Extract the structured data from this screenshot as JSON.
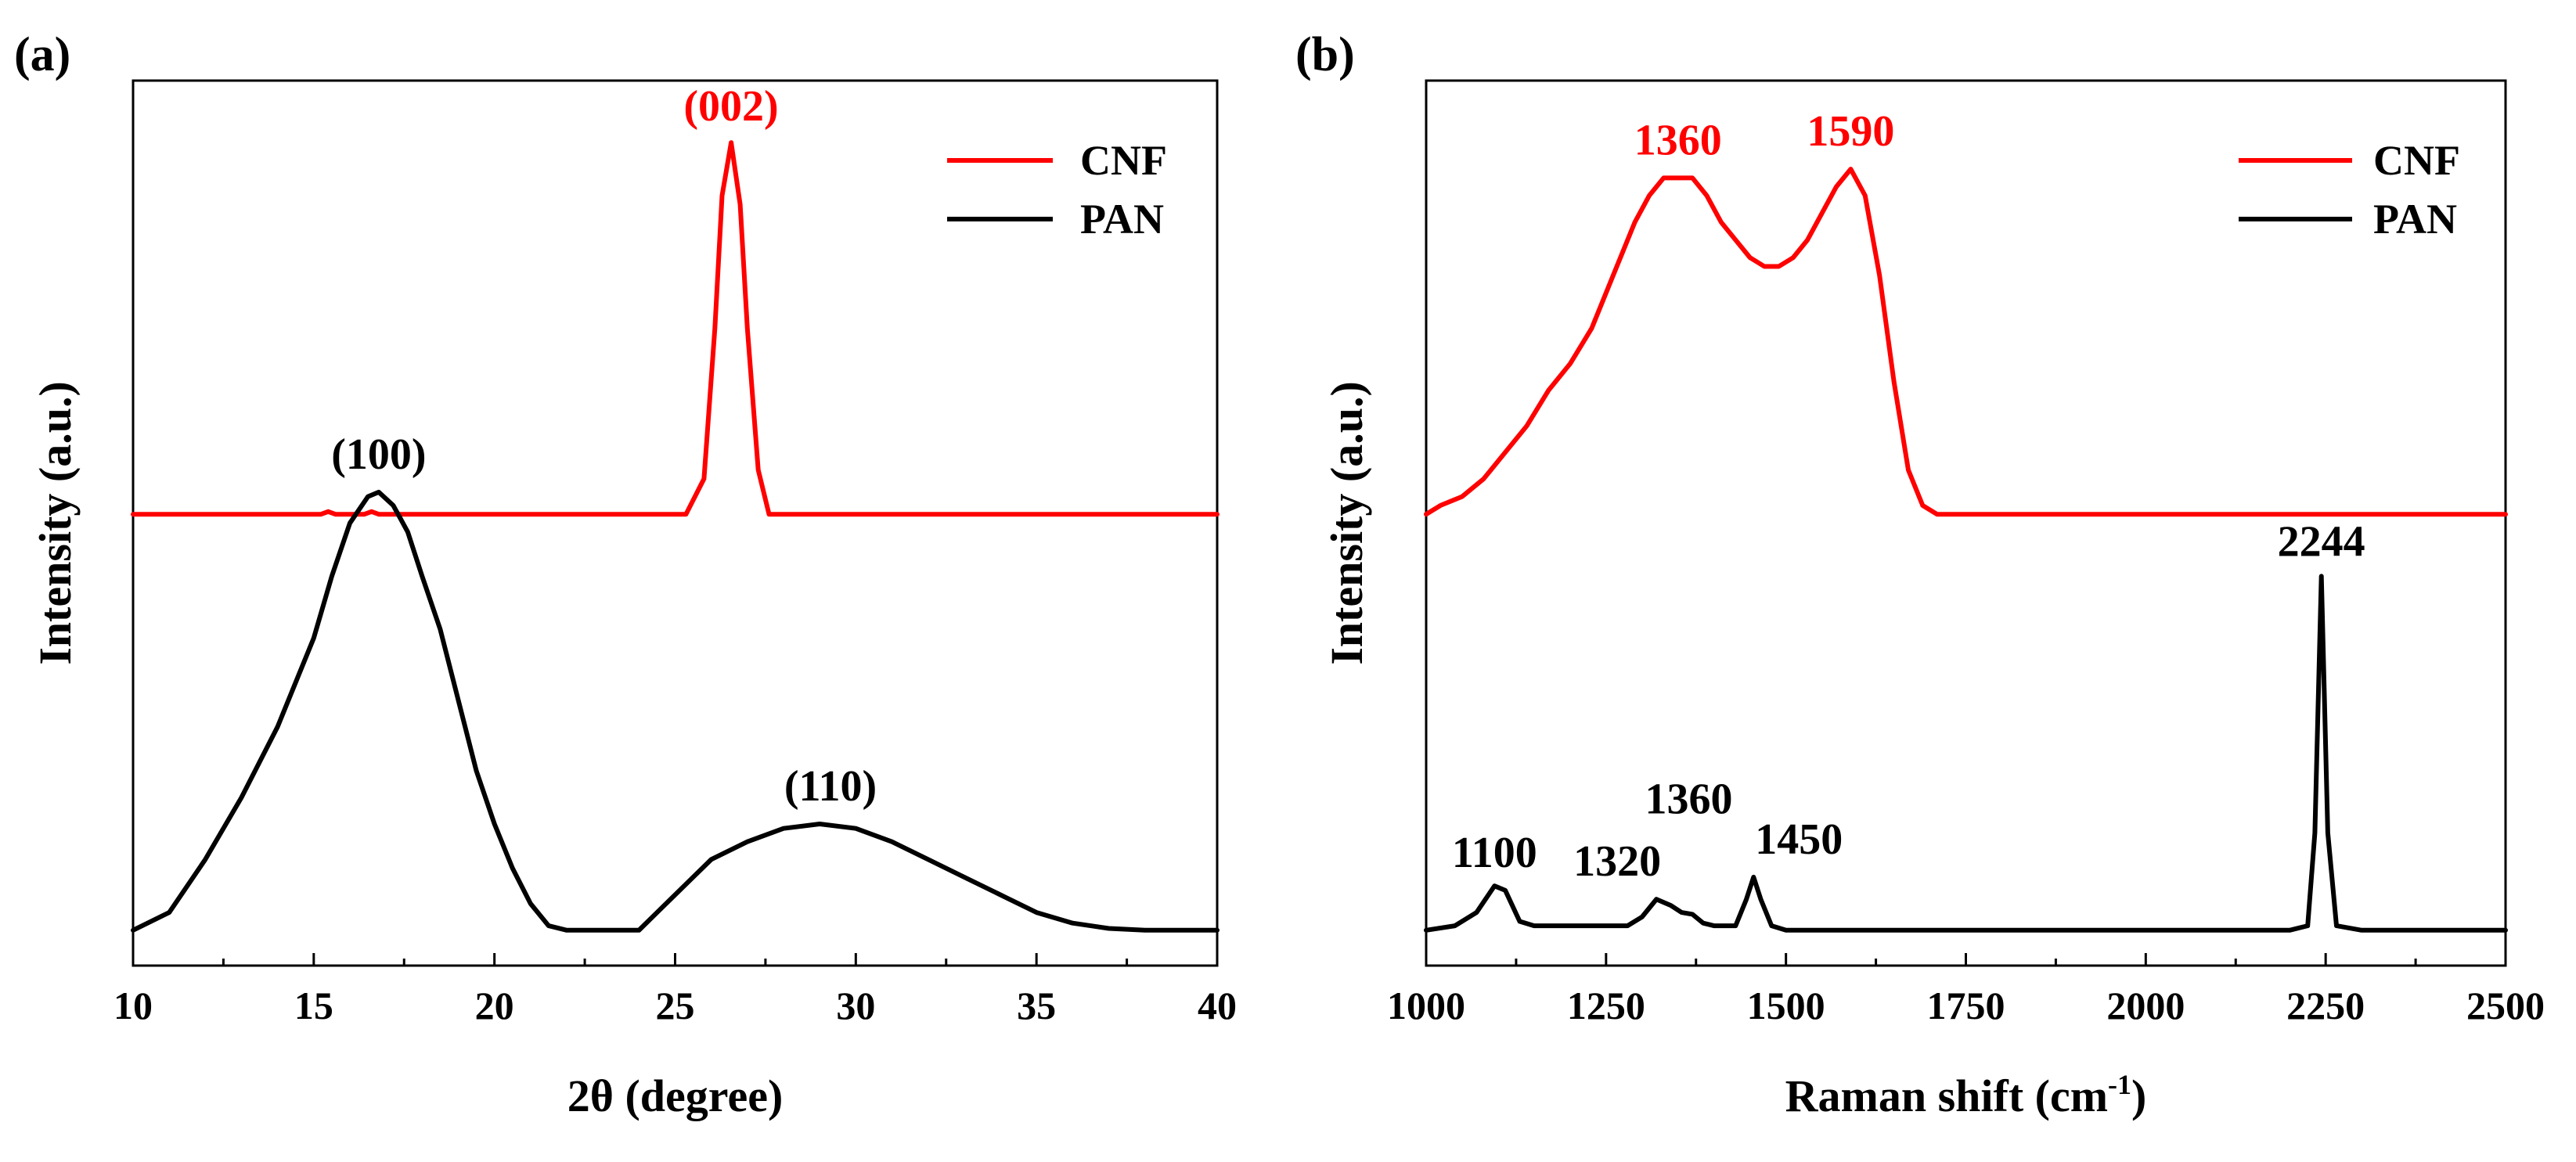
{
  "chart_data": [
    {
      "type": "line",
      "panel_label": "(a)",
      "xlabel": "2θ  (degree)",
      "ylabel": "Intensity (a.u.)",
      "xlim": [
        10,
        40
      ],
      "ylim": [
        0,
        1
      ],
      "x_ticks": [
        "10",
        "15",
        "20",
        "25",
        "30",
        "35",
        "40"
      ],
      "grid": false,
      "legend_position": "top-right",
      "colors": {
        "CNF": "#ff0000",
        "PAN": "#000000"
      },
      "series": [
        {
          "name": "CNF",
          "color": "#ff0000",
          "points": [
            [
              10,
              0.51
            ],
            [
              15.2,
              0.51
            ],
            [
              15.4,
              0.513
            ],
            [
              15.6,
              0.51
            ],
            [
              16.4,
              0.51
            ],
            [
              16.6,
              0.513
            ],
            [
              16.8,
              0.51
            ],
            [
              25.3,
              0.51
            ],
            [
              25.8,
              0.55
            ],
            [
              26.1,
              0.72
            ],
            [
              26.3,
              0.87
            ],
            [
              26.55,
              0.93
            ],
            [
              26.8,
              0.86
            ],
            [
              27.0,
              0.72
            ],
            [
              27.3,
              0.56
            ],
            [
              27.6,
              0.51
            ],
            [
              40,
              0.51
            ]
          ]
        },
        {
          "name": "PAN",
          "color": "#000000",
          "points": [
            [
              10,
              0.04
            ],
            [
              11,
              0.06
            ],
            [
              12,
              0.12
            ],
            [
              13,
              0.19
            ],
            [
              14,
              0.27
            ],
            [
              15,
              0.37
            ],
            [
              15.5,
              0.44
            ],
            [
              16,
              0.5
            ],
            [
              16.5,
              0.53
            ],
            [
              16.8,
              0.535
            ],
            [
              17.2,
              0.52
            ],
            [
              17.6,
              0.49
            ],
            [
              18,
              0.44
            ],
            [
              18.5,
              0.38
            ],
            [
              19,
              0.3
            ],
            [
              19.5,
              0.22
            ],
            [
              20,
              0.16
            ],
            [
              20.5,
              0.11
            ],
            [
              21,
              0.07
            ],
            [
              21.5,
              0.045
            ],
            [
              22,
              0.04
            ],
            [
              24,
              0.04
            ],
            [
              24.5,
              0.06
            ],
            [
              25,
              0.08
            ],
            [
              26,
              0.12
            ],
            [
              27,
              0.14
            ],
            [
              28,
              0.155
            ],
            [
              29,
              0.16
            ],
            [
              30,
              0.155
            ],
            [
              31,
              0.14
            ],
            [
              32,
              0.12
            ],
            [
              33,
              0.1
            ],
            [
              34,
              0.08
            ],
            [
              35,
              0.06
            ],
            [
              36,
              0.048
            ],
            [
              37,
              0.042
            ],
            [
              38,
              0.04
            ],
            [
              40,
              0.04
            ]
          ]
        }
      ],
      "annotations": [
        {
          "text": "(002)",
          "x": 26.55,
          "y": 0.93,
          "color": "#ff0000"
        },
        {
          "text": "(100)",
          "x": 16.8,
          "y": 0.535,
          "color": "#000000"
        },
        {
          "text": "(110)",
          "x": 29.3,
          "y": 0.16,
          "color": "#000000"
        }
      ]
    },
    {
      "type": "line",
      "panel_label": "(b)",
      "xlabel": "Raman shift (cm",
      "xlabel_superscript": "-1",
      "xlabel_suffix": ")",
      "ylabel": "Intensity (a.u.)",
      "xlim": [
        1000,
        2500
      ],
      "ylim": [
        0,
        1
      ],
      "x_ticks": [
        "1000",
        "1250",
        "1500",
        "1750",
        "2000",
        "2250",
        "2500"
      ],
      "grid": false,
      "legend_position": "top-right",
      "colors": {
        "CNF": "#ff0000",
        "PAN": "#000000"
      },
      "series": [
        {
          "name": "CNF",
          "color": "#ff0000",
          "points": [
            [
              1000,
              0.51
            ],
            [
              1020,
              0.52
            ],
            [
              1050,
              0.53
            ],
            [
              1080,
              0.55
            ],
            [
              1110,
              0.58
            ],
            [
              1140,
              0.61
            ],
            [
              1170,
              0.65
            ],
            [
              1200,
              0.68
            ],
            [
              1230,
              0.72
            ],
            [
              1260,
              0.78
            ],
            [
              1290,
              0.84
            ],
            [
              1310,
              0.87
            ],
            [
              1330,
              0.89
            ],
            [
              1350,
              0.89
            ],
            [
              1370,
              0.89
            ],
            [
              1390,
              0.87
            ],
            [
              1410,
              0.84
            ],
            [
              1430,
              0.82
            ],
            [
              1450,
              0.8
            ],
            [
              1470,
              0.79
            ],
            [
              1490,
              0.79
            ],
            [
              1510,
              0.8
            ],
            [
              1530,
              0.82
            ],
            [
              1550,
              0.85
            ],
            [
              1570,
              0.88
            ],
            [
              1590,
              0.9
            ],
            [
              1610,
              0.87
            ],
            [
              1630,
              0.78
            ],
            [
              1650,
              0.66
            ],
            [
              1670,
              0.56
            ],
            [
              1690,
              0.52
            ],
            [
              1710,
              0.51
            ],
            [
              2500,
              0.51
            ]
          ]
        },
        {
          "name": "PAN",
          "color": "#000000",
          "points": [
            [
              1000,
              0.04
            ],
            [
              1040,
              0.045
            ],
            [
              1070,
              0.06
            ],
            [
              1095,
              0.09
            ],
            [
              1110,
              0.085
            ],
            [
              1130,
              0.05
            ],
            [
              1150,
              0.045
            ],
            [
              1200,
              0.045
            ],
            [
              1280,
              0.045
            ],
            [
              1300,
              0.055
            ],
            [
              1320,
              0.075
            ],
            [
              1340,
              0.068
            ],
            [
              1355,
              0.06
            ],
            [
              1370,
              0.058
            ],
            [
              1385,
              0.048
            ],
            [
              1400,
              0.045
            ],
            [
              1430,
              0.045
            ],
            [
              1445,
              0.075
            ],
            [
              1455,
              0.1
            ],
            [
              1465,
              0.075
            ],
            [
              1480,
              0.045
            ],
            [
              1500,
              0.04
            ],
            [
              1600,
              0.04
            ],
            [
              1700,
              0.04
            ],
            [
              1800,
              0.04
            ],
            [
              1900,
              0.04
            ],
            [
              2000,
              0.04
            ],
            [
              2100,
              0.04
            ],
            [
              2200,
              0.04
            ],
            [
              2225,
              0.045
            ],
            [
              2235,
              0.15
            ],
            [
              2244,
              0.44
            ],
            [
              2253,
              0.15
            ],
            [
              2265,
              0.045
            ],
            [
              2300,
              0.04
            ],
            [
              2500,
              0.04
            ]
          ]
        }
      ],
      "annotations": [
        {
          "text": "1360",
          "x": 1350,
          "y": 0.89,
          "color": "#ff0000"
        },
        {
          "text": "1590",
          "x": 1590,
          "y": 0.9,
          "color": "#ff0000"
        },
        {
          "text": "1100",
          "x": 1095,
          "y": 0.09,
          "color": "#000000"
        },
        {
          "text": "1320",
          "x": 1320,
          "y": 0.075,
          "color": "#000000"
        },
        {
          "text": "1360",
          "x": 1365,
          "y": 0.14,
          "color": "#000000"
        },
        {
          "text": "1450",
          "x": 1480,
          "y": 0.1,
          "color": "#000000"
        },
        {
          "text": "2244",
          "x": 2244,
          "y": 0.44,
          "color": "#000000"
        }
      ]
    }
  ]
}
